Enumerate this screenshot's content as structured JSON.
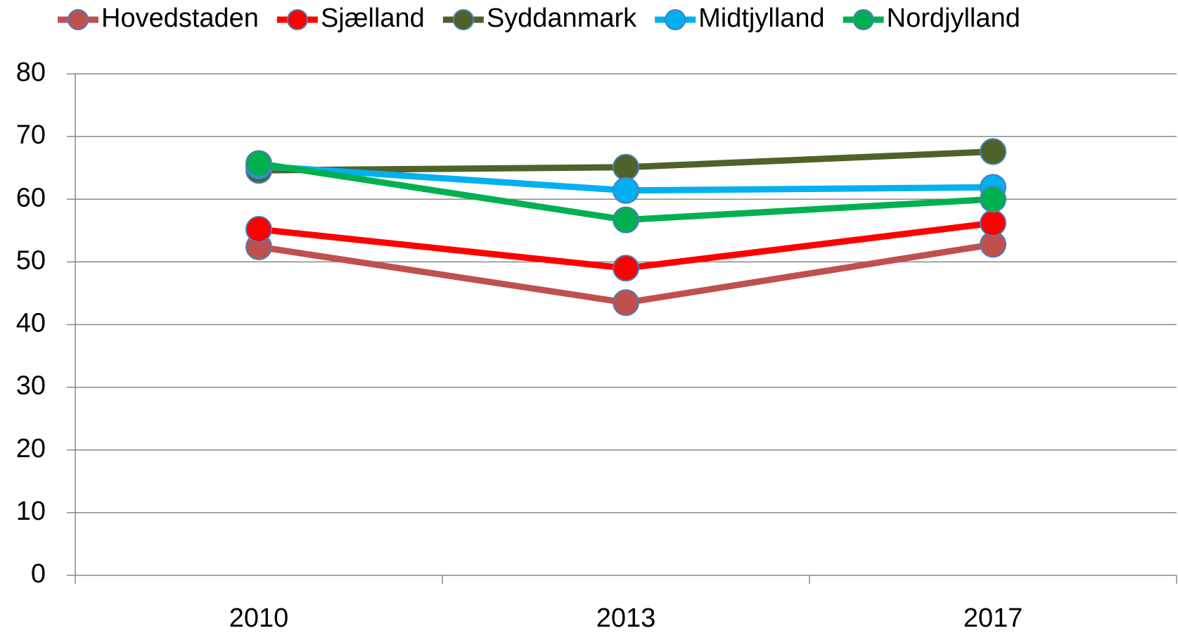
{
  "chart_data": {
    "type": "line",
    "categories": [
      "2010",
      "2013",
      "2017"
    ],
    "series": [
      {
        "name": "Hovedstaden",
        "color": "#c0504d",
        "values": [
          52.4,
          43.5,
          52.8
        ]
      },
      {
        "name": "Sjælland",
        "color": "#ff0000",
        "values": [
          55.2,
          49.0,
          56.2
        ]
      },
      {
        "name": "Syddanmark",
        "color": "#4f6228",
        "values": [
          64.6,
          65.1,
          67.6
        ]
      },
      {
        "name": "Midtjylland",
        "color": "#00b0f0",
        "values": [
          65.3,
          61.4,
          61.9
        ]
      },
      {
        "name": "Nordjylland",
        "color": "#00b050",
        "values": [
          65.7,
          56.7,
          60.0
        ]
      }
    ],
    "ylim": [
      0,
      80
    ],
    "yticks": [
      0,
      10,
      20,
      30,
      40,
      50,
      60,
      70,
      80
    ],
    "grid": true,
    "legend": "top"
  }
}
